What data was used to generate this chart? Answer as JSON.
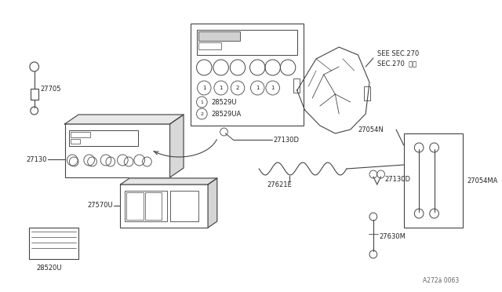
{
  "bg_color": "#ffffff",
  "line_color": "#444444",
  "text_color": "#222222",
  "watermark": "A272ä 0063",
  "see_sec": "SEE SEC.270",
  "sec270": "SEC.270  参図"
}
